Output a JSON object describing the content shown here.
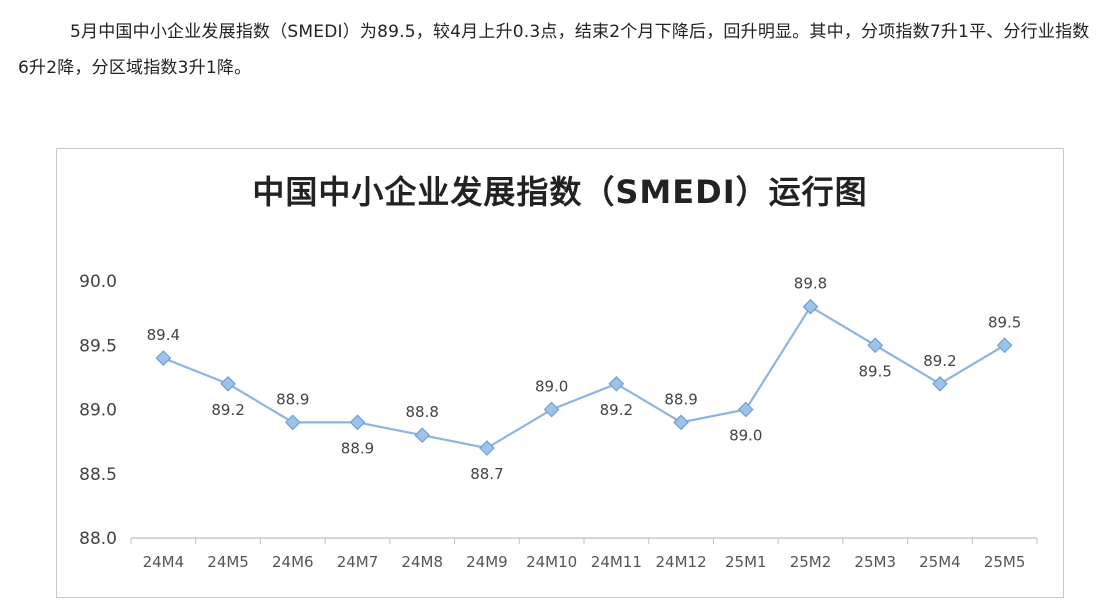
{
  "intro_text": "5月中国中小企业发展指数（SMEDI）为89.5，较4月上升0.3点，结束2个月下降后，回升明显。其中，分项指数7升1平、分行业指数6升2降，分区域指数3升1降。",
  "colors": {
    "line": "#8db4e2",
    "marker_fill": "#9dc3ea",
    "marker_stroke": "#6f9fd6",
    "axis": "#bfbfbf"
  },
  "chart_data": {
    "type": "line",
    "title": "中国中小企业发展指数（SMEDI）运行图",
    "categories": [
      "24M4",
      "24M5",
      "24M6",
      "24M7",
      "24M8",
      "24M9",
      "24M10",
      "24M11",
      "24M12",
      "25M1",
      "25M2",
      "25M3",
      "25M4",
      "25M5"
    ],
    "series": [
      {
        "values": [
          89.4,
          89.2,
          88.9,
          88.9,
          88.8,
          88.7,
          89.0,
          89.2,
          88.9,
          89.0,
          89.8,
          89.5,
          89.2,
          89.5
        ]
      }
    ],
    "data_labels": [
      "89.4",
      "89.2",
      "88.9",
      "88.9",
      "88.8",
      "88.7",
      "89.0",
      "89.2",
      "88.9",
      "89.0",
      "89.8",
      "89.5",
      "89.2",
      "89.5"
    ],
    "label_positions": [
      "above",
      "below",
      "above",
      "below",
      "above",
      "below",
      "above",
      "below",
      "above",
      "below",
      "above",
      "below",
      "above",
      "above"
    ],
    "ylim": [
      88.0,
      90.0
    ],
    "yticks": [
      "88.0",
      "88.5",
      "89.0",
      "89.5",
      "90.0"
    ],
    "xlabel": "",
    "ylabel": "",
    "grid": false,
    "legend": "none"
  }
}
